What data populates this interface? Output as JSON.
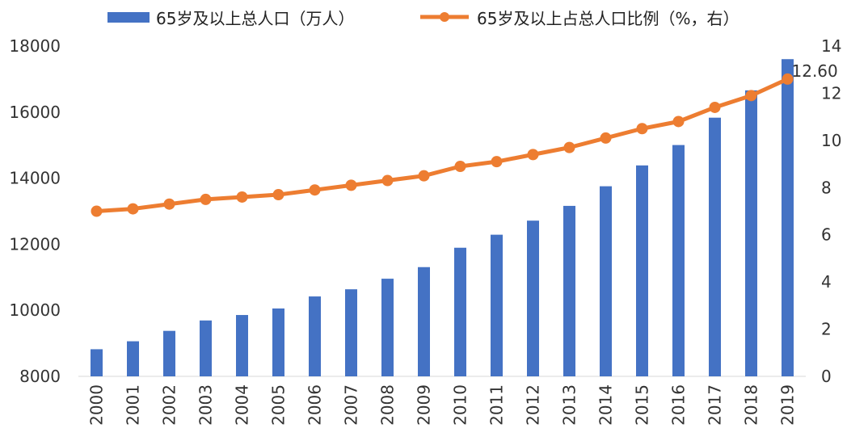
{
  "chart_data": {
    "type": "bar",
    "categories": [
      "2000",
      "2001",
      "2002",
      "2003",
      "2004",
      "2005",
      "2006",
      "2007",
      "2008",
      "2009",
      "2010",
      "2011",
      "2012",
      "2013",
      "2014",
      "2015",
      "2016",
      "2017",
      "2018",
      "2019"
    ],
    "series": [
      {
        "name": "65岁及以上总人口（万人）",
        "type": "bar",
        "axis": "left",
        "color": "#4472C4",
        "values": [
          8821,
          9062,
          9377,
          9692,
          9857,
          10055,
          10419,
          10636,
          10956,
          11307,
          11894,
          12288,
          12714,
          13161,
          13755,
          14386,
          15003,
          15831,
          16658,
          17603
        ]
      },
      {
        "name": "65岁及以上占总人口比例（%，右）",
        "type": "line",
        "axis": "right",
        "color": "#ED7D31",
        "values": [
          7.0,
          7.1,
          7.3,
          7.5,
          7.6,
          7.7,
          7.9,
          8.1,
          8.3,
          8.5,
          8.9,
          9.1,
          9.4,
          9.7,
          10.1,
          10.5,
          10.8,
          11.4,
          11.9,
          12.6
        ]
      }
    ],
    "y_left": {
      "min": 8000,
      "max": 18000,
      "ticks": [
        "8000",
        "10000",
        "12000",
        "14000",
        "16000",
        "18000"
      ]
    },
    "y_right": {
      "min": 0,
      "max": 14,
      "ticks": [
        "0",
        "2",
        "4",
        "6",
        "8",
        "10",
        "12",
        "14"
      ]
    },
    "annotation": {
      "text": "12.60",
      "category": "2019"
    },
    "legend_position": "top",
    "grid": false
  }
}
